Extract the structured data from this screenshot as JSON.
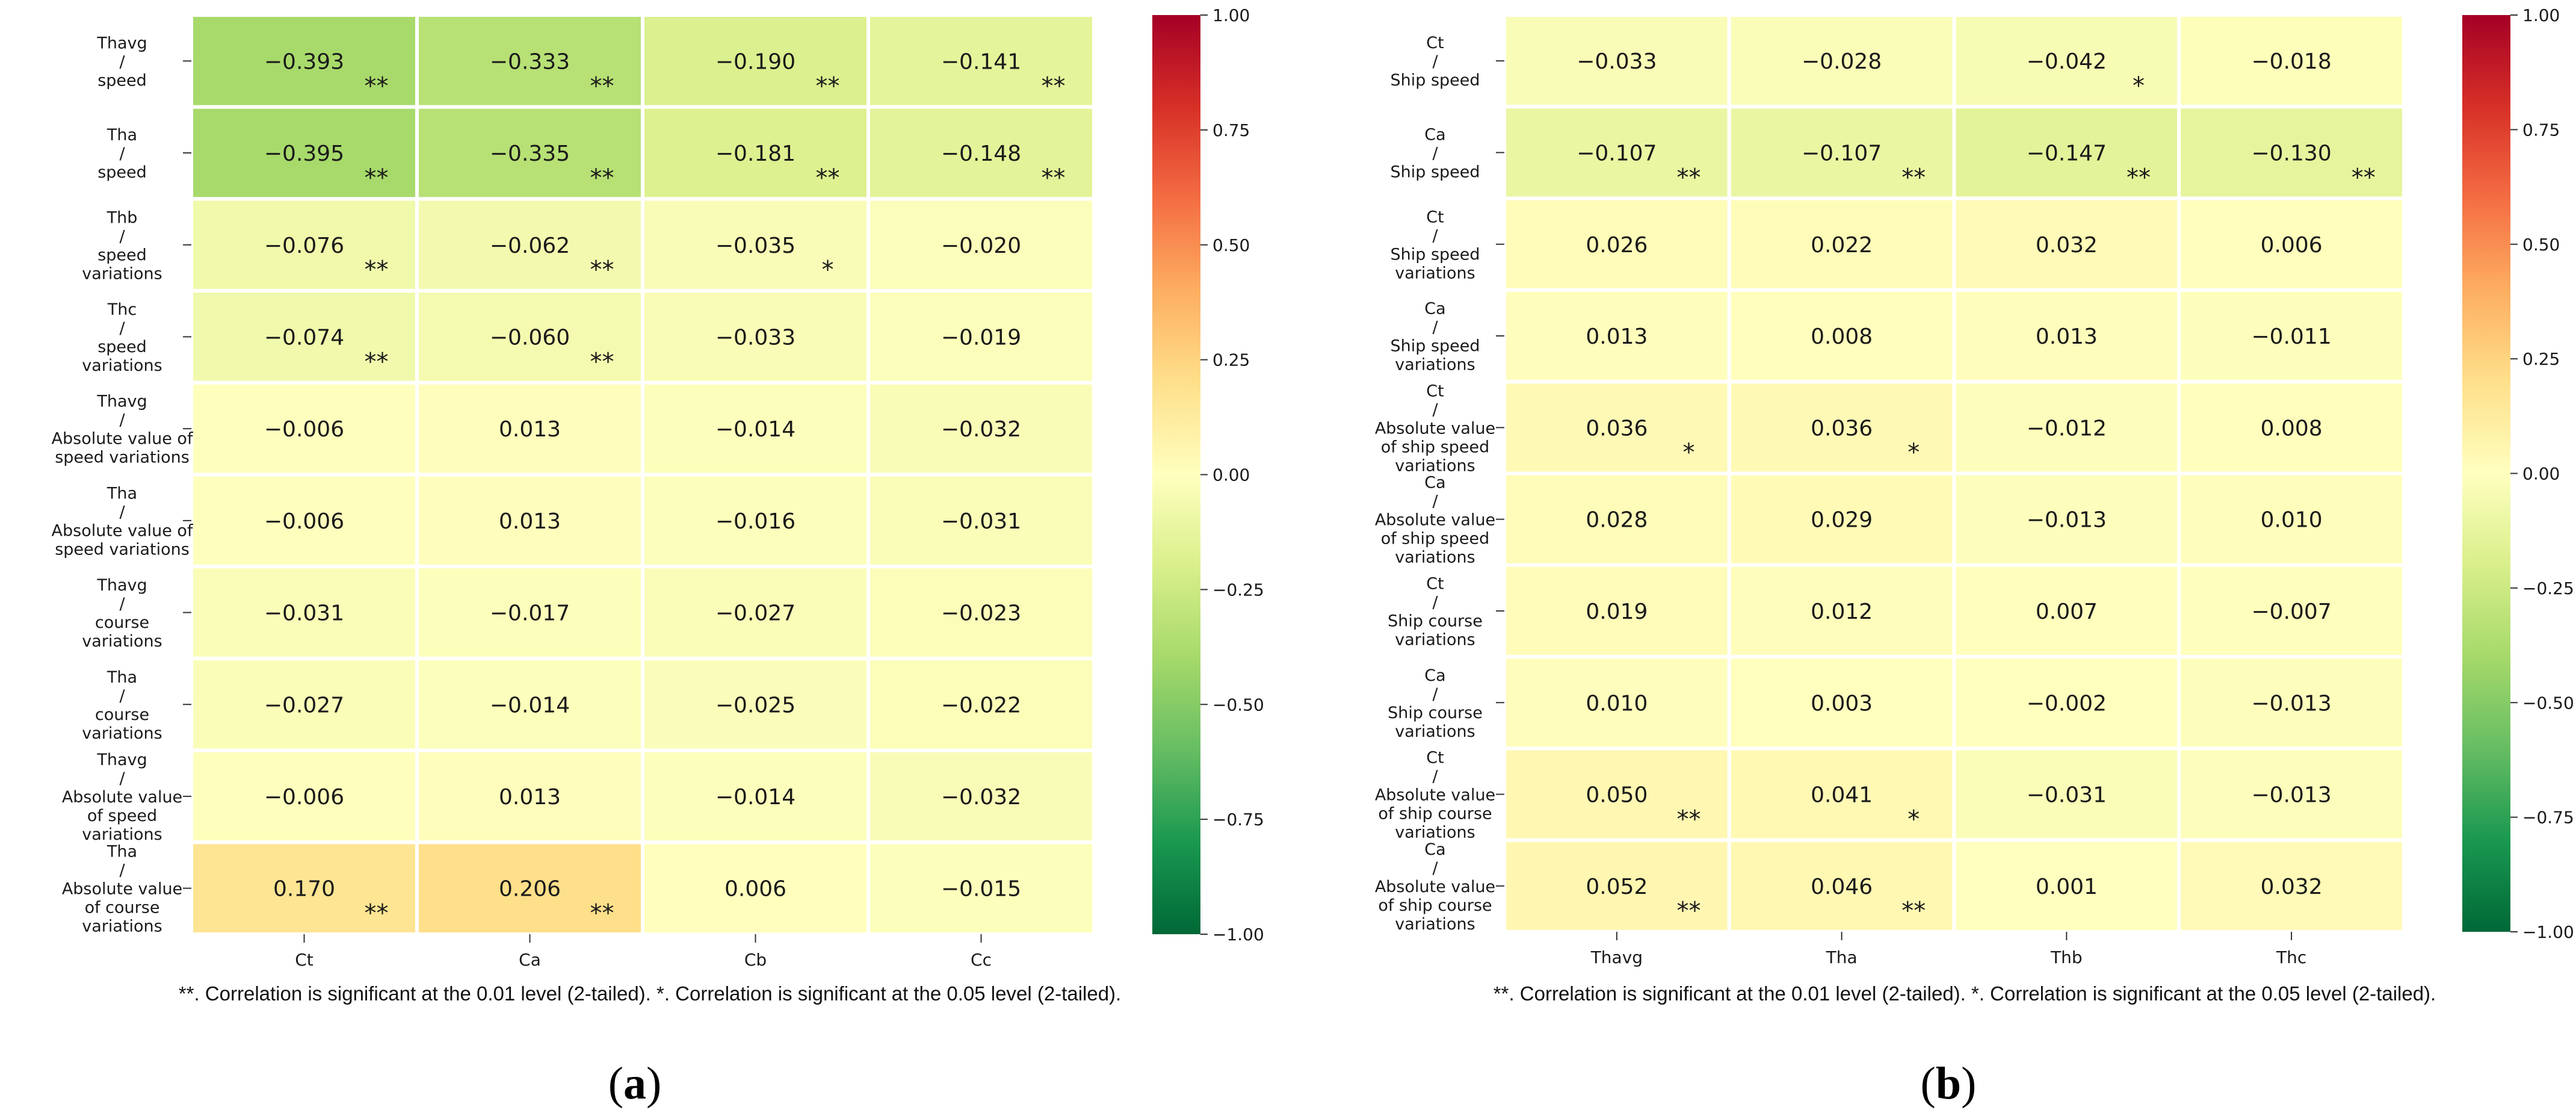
{
  "chart_data": [
    {
      "type": "heatmap",
      "panel_label": "(a)",
      "panel_letter": "a",
      "columns": [
        "Ct",
        "Ca",
        "Cb",
        "Cc"
      ],
      "rows": [
        [
          "Thavg",
          "/",
          "speed"
        ],
        [
          "Tha",
          "/",
          "speed"
        ],
        [
          "Thb",
          "/",
          "speed",
          "variations"
        ],
        [
          "Thc",
          "/",
          "speed",
          "variations"
        ],
        [
          "Thavg",
          "/",
          "Absolute value of",
          "speed variations"
        ],
        [
          "Tha",
          "/",
          "Absolute value of",
          "speed variations"
        ],
        [
          "Thavg",
          "/",
          "course",
          "variations"
        ],
        [
          "Tha",
          "/",
          "course",
          "variations"
        ],
        [
          "Thavg",
          "/",
          "Absolute value",
          "of  speed",
          "variations"
        ],
        [
          "Tha",
          "/",
          "Absolute value",
          "of  course",
          "variations"
        ]
      ],
      "values": [
        [
          -0.393,
          -0.333,
          -0.19,
          -0.141
        ],
        [
          -0.395,
          -0.335,
          -0.181,
          -0.148
        ],
        [
          -0.076,
          -0.062,
          -0.035,
          -0.02
        ],
        [
          -0.074,
          -0.06,
          -0.033,
          -0.019
        ],
        [
          -0.006,
          0.013,
          -0.014,
          -0.032
        ],
        [
          -0.006,
          0.013,
          -0.016,
          -0.031
        ],
        [
          -0.031,
          -0.017,
          -0.027,
          -0.023
        ],
        [
          -0.027,
          -0.014,
          -0.025,
          -0.022
        ],
        [
          -0.006,
          0.013,
          -0.014,
          -0.032
        ],
        [
          0.17,
          0.206,
          0.006,
          -0.015
        ]
      ],
      "value_labels": [
        [
          "−0.393",
          "−0.333",
          "−0.190",
          "−0.141"
        ],
        [
          "−0.395",
          "−0.335",
          "−0.181",
          "−0.148"
        ],
        [
          "−0.076",
          "−0.062",
          "−0.035",
          "−0.020"
        ],
        [
          "−0.074",
          "−0.060",
          "−0.033",
          "−0.019"
        ],
        [
          "−0.006",
          "0.013",
          "−0.014",
          "−0.032"
        ],
        [
          "−0.006",
          "0.013",
          "−0.016",
          "−0.031"
        ],
        [
          "−0.031",
          "−0.017",
          "−0.027",
          "−0.023"
        ],
        [
          "−0.027",
          "−0.014",
          "−0.025",
          "−0.022"
        ],
        [
          "−0.006",
          "0.013",
          "−0.014",
          "−0.032"
        ],
        [
          "0.170",
          "0.206",
          "0.006",
          "−0.015"
        ]
      ],
      "significance": [
        [
          "**",
          "**",
          "**",
          "**"
        ],
        [
          "**",
          "**",
          "**",
          "**"
        ],
        [
          "**",
          "**",
          "*",
          ""
        ],
        [
          "**",
          "**",
          "",
          ""
        ],
        [
          "",
          "",
          "",
          ""
        ],
        [
          "",
          "",
          "",
          ""
        ],
        [
          "",
          "",
          "",
          ""
        ],
        [
          "",
          "",
          "",
          ""
        ],
        [
          "",
          "",
          "",
          ""
        ],
        [
          "**",
          "**",
          "",
          ""
        ]
      ],
      "colorbar": {
        "range": [
          -1,
          1
        ],
        "ticks": [
          1.0,
          0.75,
          0.5,
          0.25,
          0.0,
          -0.25,
          -0.5,
          -0.75,
          -1.0
        ],
        "tick_labels": [
          "1.00",
          "0.75",
          "0.50",
          "0.25",
          "0.00",
          "−0.25",
          "−0.50",
          "−0.75",
          "−1.00"
        ],
        "colormap": "RdYlGn_r"
      },
      "footnote": "**. Correlation is significant at the 0.01 level (2-tailed). *. Correlation is significant at the 0.05 level (2-tailed)."
    },
    {
      "type": "heatmap",
      "panel_label": "(b)",
      "panel_letter": "b",
      "columns": [
        "Thavg",
        "Tha",
        "Thb",
        "Thc"
      ],
      "rows": [
        [
          "Ct",
          "/",
          "Ship speed"
        ],
        [
          "Ca",
          "/",
          "Ship speed"
        ],
        [
          "Ct",
          "/",
          "Ship speed",
          "variations"
        ],
        [
          "Ca",
          "/",
          "Ship speed",
          "variations"
        ],
        [
          "Ct",
          "/",
          "Absolute value",
          "of ship speed",
          "variations"
        ],
        [
          "Ca",
          "/",
          "Absolute value",
          "of ship speed",
          "variations"
        ],
        [
          "Ct",
          "/",
          "Ship course",
          "variations"
        ],
        [
          "Ca",
          "/",
          "Ship course",
          "variations"
        ],
        [
          "Ct",
          "/",
          "Absolute value",
          "of ship course",
          "variations"
        ],
        [
          "Ca",
          "/",
          "Absolute value",
          "of ship course",
          "variations"
        ]
      ],
      "values": [
        [
          -0.033,
          -0.028,
          -0.042,
          -0.018
        ],
        [
          -0.107,
          -0.107,
          -0.147,
          -0.13
        ],
        [
          0.026,
          0.022,
          0.032,
          0.006
        ],
        [
          0.013,
          0.008,
          0.013,
          -0.011
        ],
        [
          0.036,
          0.036,
          -0.012,
          0.008
        ],
        [
          0.028,
          0.029,
          -0.013,
          0.01
        ],
        [
          0.019,
          0.012,
          0.007,
          -0.007
        ],
        [
          0.01,
          0.003,
          -0.002,
          -0.013
        ],
        [
          0.05,
          0.041,
          -0.031,
          -0.013
        ],
        [
          0.052,
          0.046,
          0.001,
          0.032
        ]
      ],
      "value_labels": [
        [
          "−0.033",
          "−0.028",
          "−0.042",
          "−0.018"
        ],
        [
          "−0.107",
          "−0.107",
          "−0.147",
          "−0.130"
        ],
        [
          "0.026",
          "0.022",
          "0.032",
          "0.006"
        ],
        [
          "0.013",
          "0.008",
          "0.013",
          "−0.011"
        ],
        [
          "0.036",
          "0.036",
          "−0.012",
          "0.008"
        ],
        [
          "0.028",
          "0.029",
          "−0.013",
          "0.010"
        ],
        [
          "0.019",
          "0.012",
          "0.007",
          "−0.007"
        ],
        [
          "0.010",
          "0.003",
          "−0.002",
          "−0.013"
        ],
        [
          "0.050",
          "0.041",
          "−0.031",
          "−0.013"
        ],
        [
          "0.052",
          "0.046",
          "0.001",
          "0.032"
        ]
      ],
      "significance": [
        [
          "",
          "",
          "*",
          ""
        ],
        [
          "**",
          "**",
          "**",
          "**"
        ],
        [
          "",
          "",
          "",
          ""
        ],
        [
          "",
          "",
          "",
          ""
        ],
        [
          "*",
          "*",
          "",
          ""
        ],
        [
          "",
          "",
          "",
          ""
        ],
        [
          "",
          "",
          "",
          ""
        ],
        [
          "",
          "",
          "",
          ""
        ],
        [
          "**",
          "*",
          "",
          ""
        ],
        [
          "**",
          "**",
          "",
          ""
        ]
      ],
      "colorbar": {
        "range": [
          -1,
          1
        ],
        "ticks": [
          1.0,
          0.75,
          0.5,
          0.25,
          0.0,
          -0.25,
          -0.5,
          -0.75,
          -1.0
        ],
        "tick_labels": [
          "1.00",
          "0.75",
          "0.50",
          "0.25",
          "0.00",
          "−0.25",
          "−0.50",
          "−0.75",
          "−1.00"
        ],
        "colormap": "RdYlGn_r"
      },
      "footnote": "**. Correlation is significant at the 0.01 level (2-tailed). *. Correlation is significant at the 0.05 level (2-tailed)."
    }
  ]
}
